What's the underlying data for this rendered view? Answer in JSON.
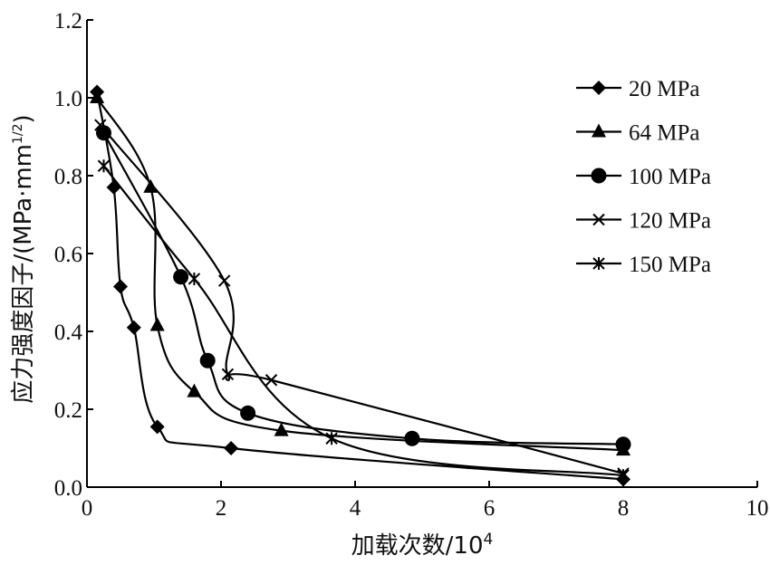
{
  "chart_data": {
    "type": "line",
    "title": "",
    "xlabel": "加载次数/10",
    "xlabel_sup": "4",
    "ylabel": "应力强度因子/(MPa·mm",
    "ylabel_sup": "1/2",
    "ylabel_close": ")",
    "xlim": [
      0,
      10
    ],
    "ylim": [
      0,
      1.2
    ],
    "xticks": [
      0,
      2,
      4,
      6,
      8,
      10
    ],
    "xtick_labels": [
      "0",
      "2",
      "4",
      "6",
      "8",
      "10"
    ],
    "yticks": [
      0,
      0.2,
      0.4,
      0.6,
      0.8,
      1.0,
      1.2
    ],
    "ytick_labels": [
      "0.0",
      "0.2",
      "0.4",
      "0.6",
      "0.8",
      "1.0",
      "1.2"
    ],
    "grid": false,
    "legend_position": "top-right",
    "series": [
      {
        "name": "20 MPa",
        "marker": "diamond",
        "x": [
          0.15,
          0.4,
          0.5,
          0.7,
          1.05,
          2.15,
          8.0
        ],
        "y": [
          1.015,
          0.77,
          0.515,
          0.41,
          0.155,
          0.1,
          0.02
        ]
      },
      {
        "name": "64 MPa",
        "marker": "triangle",
        "x": [
          0.15,
          0.95,
          1.05,
          1.6,
          2.9,
          8.0
        ],
        "y": [
          1.0,
          0.77,
          0.415,
          0.245,
          0.145,
          0.095
        ]
      },
      {
        "name": "100 MPa",
        "marker": "circle",
        "x": [
          0.25,
          1.4,
          1.8,
          2.4,
          4.85,
          8.0
        ],
        "y": [
          0.91,
          0.54,
          0.325,
          0.19,
          0.125,
          0.11
        ]
      },
      {
        "name": "120 MPa",
        "marker": "x",
        "x": [
          0.2,
          2.05,
          2.1,
          2.75,
          8.0
        ],
        "y": [
          0.93,
          0.53,
          0.29,
          0.275,
          0.035
        ]
      },
      {
        "name": "150 MPa",
        "marker": "asterisk",
        "x": [
          0.25,
          1.6,
          3.65,
          8.0
        ],
        "y": [
          0.825,
          0.535,
          0.125,
          0.03
        ]
      }
    ]
  }
}
